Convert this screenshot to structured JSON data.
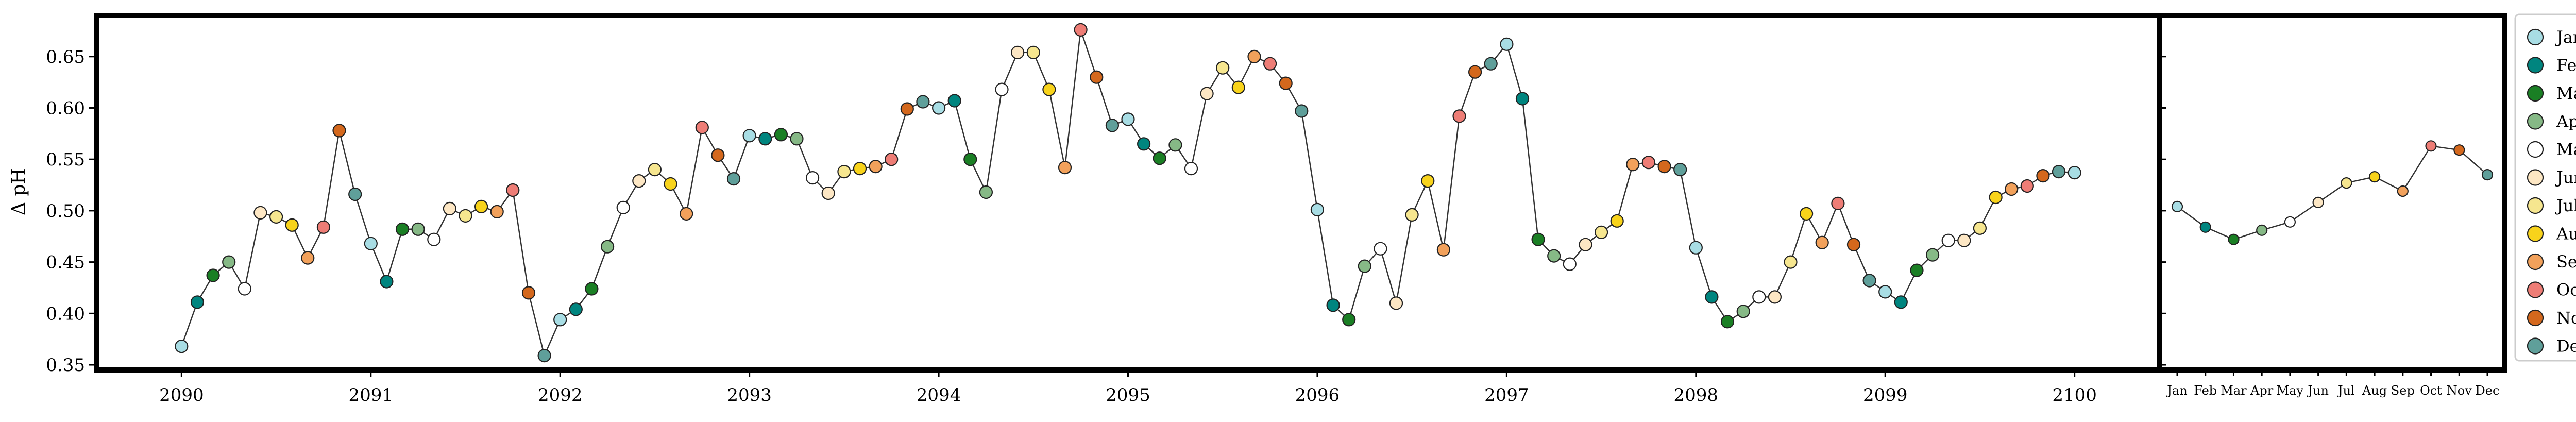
{
  "chart_data": [
    {
      "type": "line",
      "subtype": "monthly time series with month-coloured markers",
      "title": "",
      "xlabel": "",
      "ylabel": "Δ pH",
      "xlim": [
        2089.55,
        2100.45
      ],
      "ylim": [
        0.345,
        0.69
      ],
      "x_ticks": [
        2090,
        2091,
        2092,
        2093,
        2094,
        2095,
        2096,
        2097,
        2098,
        2099,
        2100
      ],
      "x_tick_labels": [
        "2090",
        "2091",
        "2092",
        "2093",
        "2094",
        "2095",
        "2096",
        "2097",
        "2098",
        "2099",
        "2100"
      ],
      "y_ticks": [
        0.35,
        0.4,
        0.45,
        0.5,
        0.55,
        0.6,
        0.65
      ],
      "y_tick_labels": [
        "0.35",
        "0.40",
        "0.45",
        "0.50",
        "0.55",
        "0.60",
        "0.65"
      ],
      "grid": false,
      "line_color": "#333333",
      "start": "2090-01",
      "series": [
        {
          "values": [
            0.368,
            0.411,
            0.437,
            0.45,
            0.424,
            0.498,
            0.494,
            0.486,
            0.454,
            0.484,
            0.578,
            0.516,
            0.468,
            0.431,
            0.482,
            0.482,
            0.472,
            0.502,
            0.495,
            0.504,
            0.499,
            0.52,
            0.42,
            0.359,
            0.394,
            0.404,
            0.424,
            0.465,
            0.503,
            0.529,
            0.54,
            0.526,
            0.497,
            0.581,
            0.554,
            0.531,
            0.573,
            0.57,
            0.574,
            0.57,
            0.532,
            0.517,
            0.538,
            0.541,
            0.543,
            0.55,
            0.599,
            0.606,
            0.6,
            0.607,
            0.55,
            0.518,
            0.618,
            0.654,
            0.654,
            0.618,
            0.542,
            0.676,
            0.63,
            0.583,
            0.589,
            0.565,
            0.551,
            0.564,
            0.541,
            0.614,
            0.639,
            0.62,
            0.65,
            0.643,
            0.624,
            0.597,
            0.501,
            0.408,
            0.394,
            0.446,
            0.463,
            0.41,
            0.496,
            0.529,
            0.462,
            0.592,
            0.635,
            0.643,
            0.662,
            0.609,
            0.472,
            0.456,
            0.448,
            0.467,
            0.479,
            0.49,
            0.545,
            0.547,
            0.543,
            0.54,
            0.464,
            0.416,
            0.392,
            0.402,
            0.416,
            0.416,
            0.45,
            0.497,
            0.469,
            0.507,
            0.467,
            0.432,
            0.421,
            0.411,
            0.442,
            0.457,
            0.471,
            0.471,
            0.483,
            0.513,
            0.521,
            0.524,
            0.534,
            0.538,
            0.537
          ]
        }
      ]
    },
    {
      "type": "line",
      "subtype": "monthly climatology",
      "title": "",
      "xlabel": "",
      "ylabel": "",
      "ylim": [
        0.345,
        0.69
      ],
      "categories": [
        "Jan",
        "Feb",
        "Mar",
        "Apr",
        "May",
        "June",
        "July",
        "Aug",
        "Sept",
        "Oct",
        "Nov",
        "Dec"
      ],
      "x_tick_labels": [
        "Jan",
        "Feb",
        "Mar",
        "Apr",
        "May",
        "Jun",
        "Jul",
        "Aug",
        "Sep",
        "Oct",
        "Nov",
        "Dec"
      ],
      "y_tick_labels_visible": false,
      "grid": false,
      "series": [
        {
          "values": [
            0.504,
            0.484,
            0.472,
            0.481,
            0.489,
            0.508,
            0.527,
            0.533,
            0.519,
            0.563,
            0.559,
            0.535
          ]
        }
      ]
    }
  ],
  "legend": {
    "placement": "right, outside",
    "items": [
      {
        "label": "Jan",
        "color": "#a8dde4"
      },
      {
        "label": "Feb",
        "color": "#00857f"
      },
      {
        "label": "Mar",
        "color": "#1a7f24"
      },
      {
        "label": "Apr",
        "color": "#86b986"
      },
      {
        "label": "May",
        "color": "#ffffff"
      },
      {
        "label": "June",
        "color": "#fde7c4"
      },
      {
        "label": "July",
        "color": "#f6e68f"
      },
      {
        "label": "Aug",
        "color": "#f8d31b"
      },
      {
        "label": "Sept",
        "color": "#f2a15b"
      },
      {
        "label": "Oct",
        "color": "#ee7d76"
      },
      {
        "label": "Nov",
        "color": "#d4681d"
      },
      {
        "label": "Dec",
        "color": "#5f9f9a"
      }
    ]
  }
}
